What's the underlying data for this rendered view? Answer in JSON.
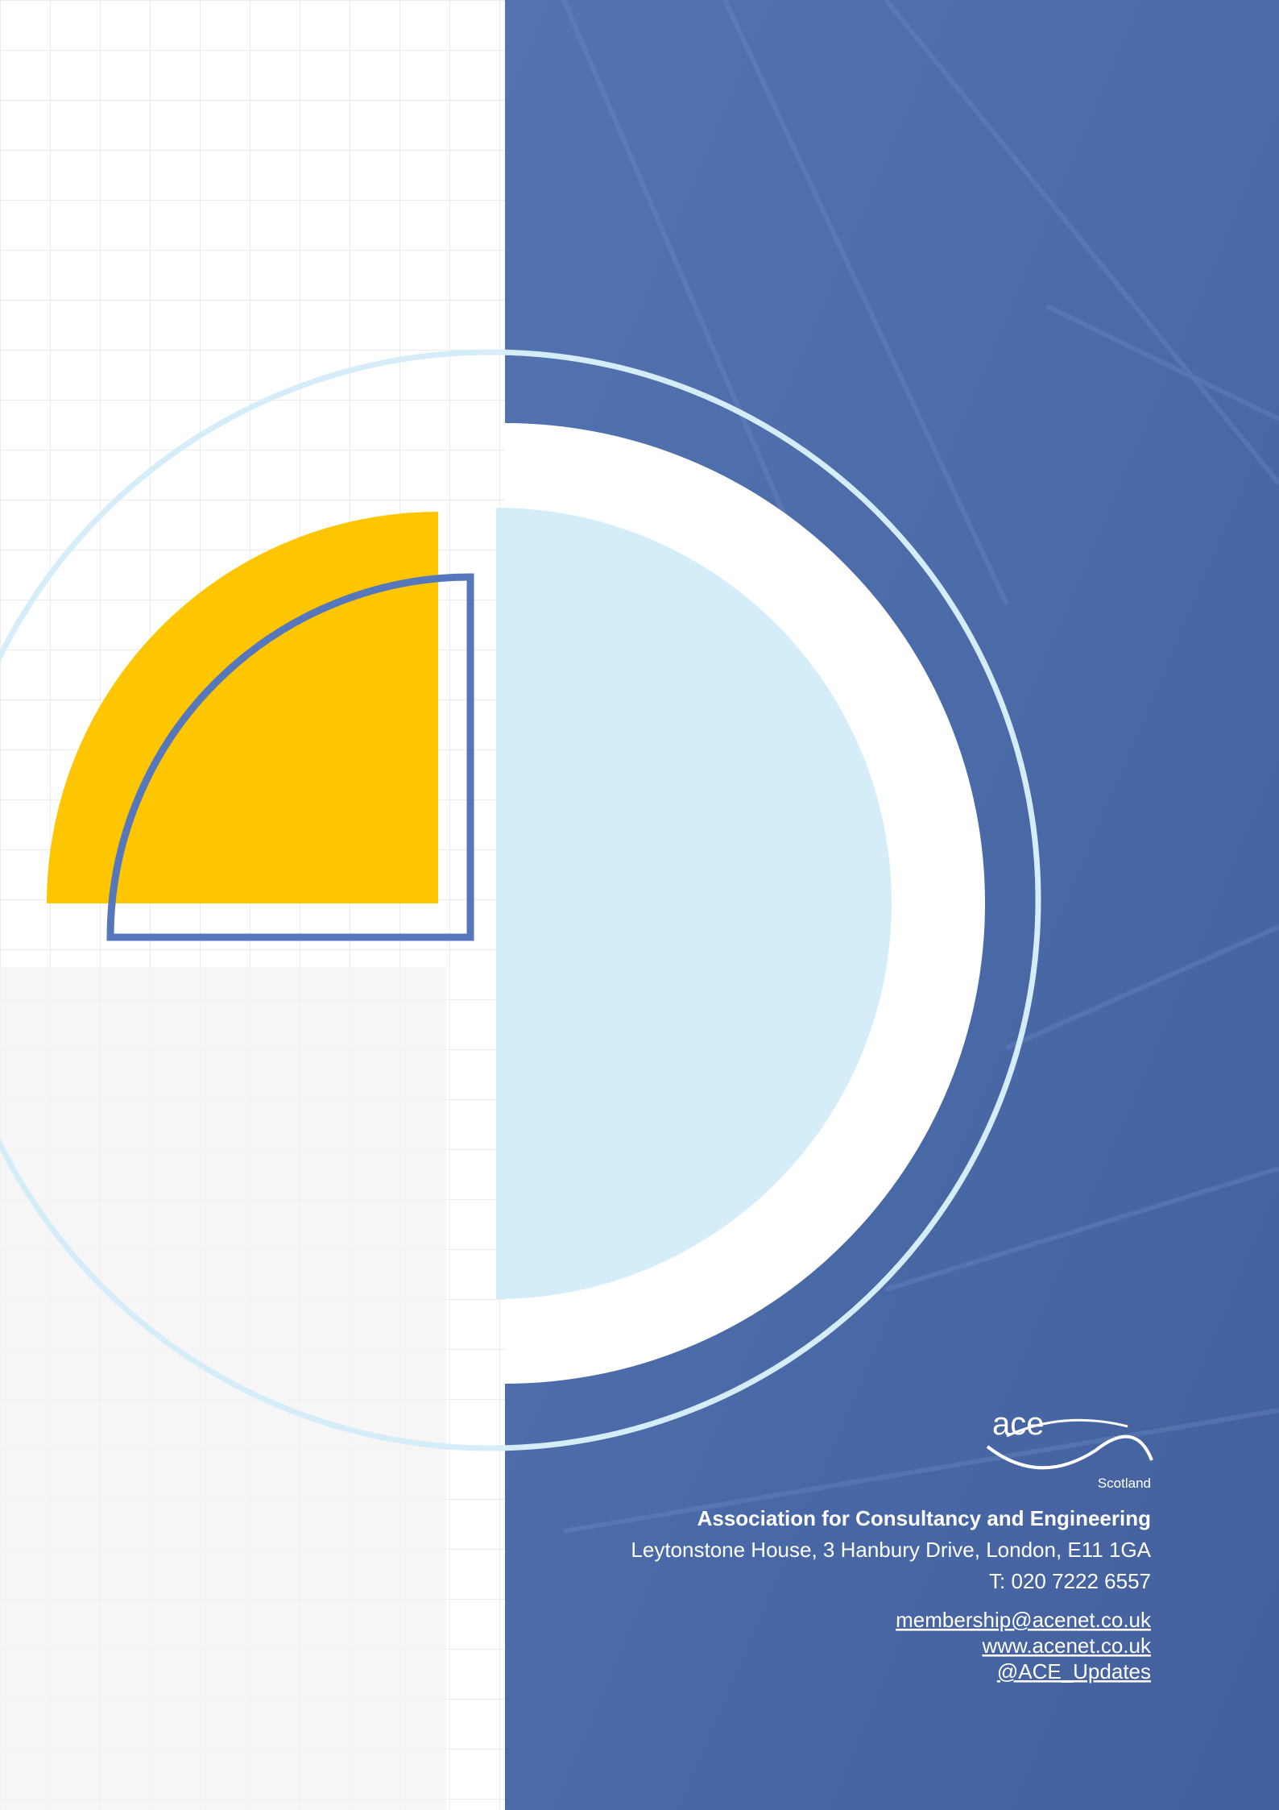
{
  "logo": {
    "text": "ace",
    "subtext": "Scotland"
  },
  "contact": {
    "organisation": "Association for Consultancy and Engineering",
    "address": "Leytonstone House, 3 Hanbury Drive, London, E11 1GA",
    "phone": "T: 020 7222 6557",
    "email": "membership@acenet.co.uk",
    "website": "www.acenet.co.uk",
    "social": "@ACE_Updates"
  }
}
